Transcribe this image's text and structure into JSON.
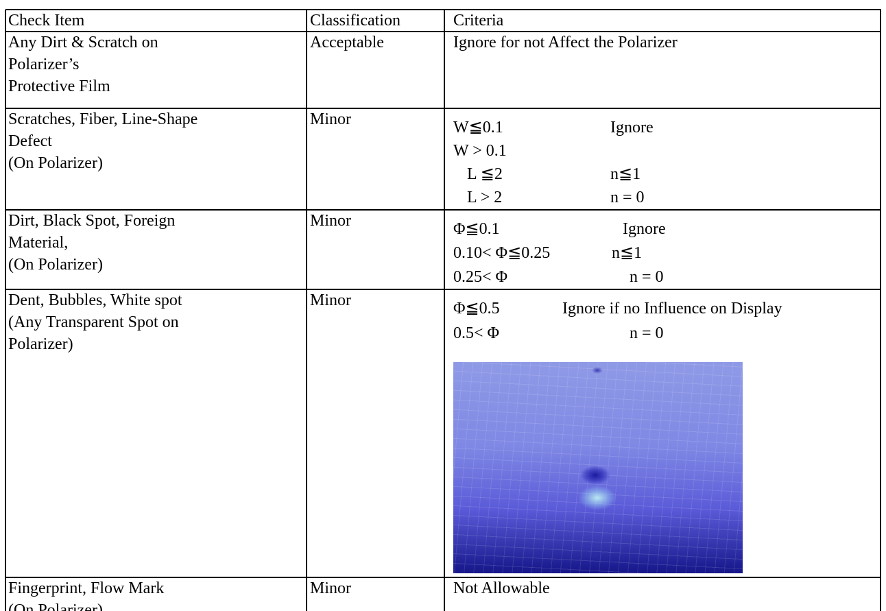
{
  "table": {
    "header": [
      "Check Item",
      "Classification",
      "Criteria"
    ],
    "rows": [
      {
        "check_item": [
          "Any Dirt & Scratch on",
          "Polarizer’s",
          "Protective Film"
        ],
        "classification": "Acceptable",
        "criteria": [
          [
            "Ignore for not Affect the Polarizer"
          ]
        ]
      },
      {
        "check_item": [
          "Scratches, Fiber, Line-Shape",
          "Defect",
          "(On Polarizer)"
        ],
        "classification": "Minor",
        "criteria": [
          [
            "W≦0.1",
            "Ignore"
          ],
          [
            "W > 0.1"
          ],
          [
            "L ≦2",
            "n≦1"
          ],
          [
            "L > 2",
            "n = 0"
          ]
        ]
      },
      {
        "check_item": [
          "Dirt, Black Spot, Foreign",
          "Material,",
          "(On Polarizer)"
        ],
        "classification": "Minor",
        "criteria": [
          [
            "Φ≦0.1",
            "Ignore"
          ],
          [
            "0.10< Φ≦0.25",
            "n≦1"
          ],
          [
            "0.25< Φ",
            "n = 0"
          ]
        ]
      },
      {
        "check_item": [
          "Dent, Bubbles, White spot",
          "(Any Transparent Spot on",
          "Polarizer)"
        ],
        "classification": "Minor",
        "criteria": [
          [
            "Φ≦0.5",
            "Ignore if no Influence on Display"
          ],
          [
            "0.5< Φ",
            "n = 0"
          ]
        ]
      },
      {
        "check_item": [
          "Fingerprint, Flow Mark",
          "(On Polarizer)"
        ],
        "classification": "Minor",
        "criteria": [
          [
            "Not Allowable"
          ]
        ]
      }
    ]
  }
}
